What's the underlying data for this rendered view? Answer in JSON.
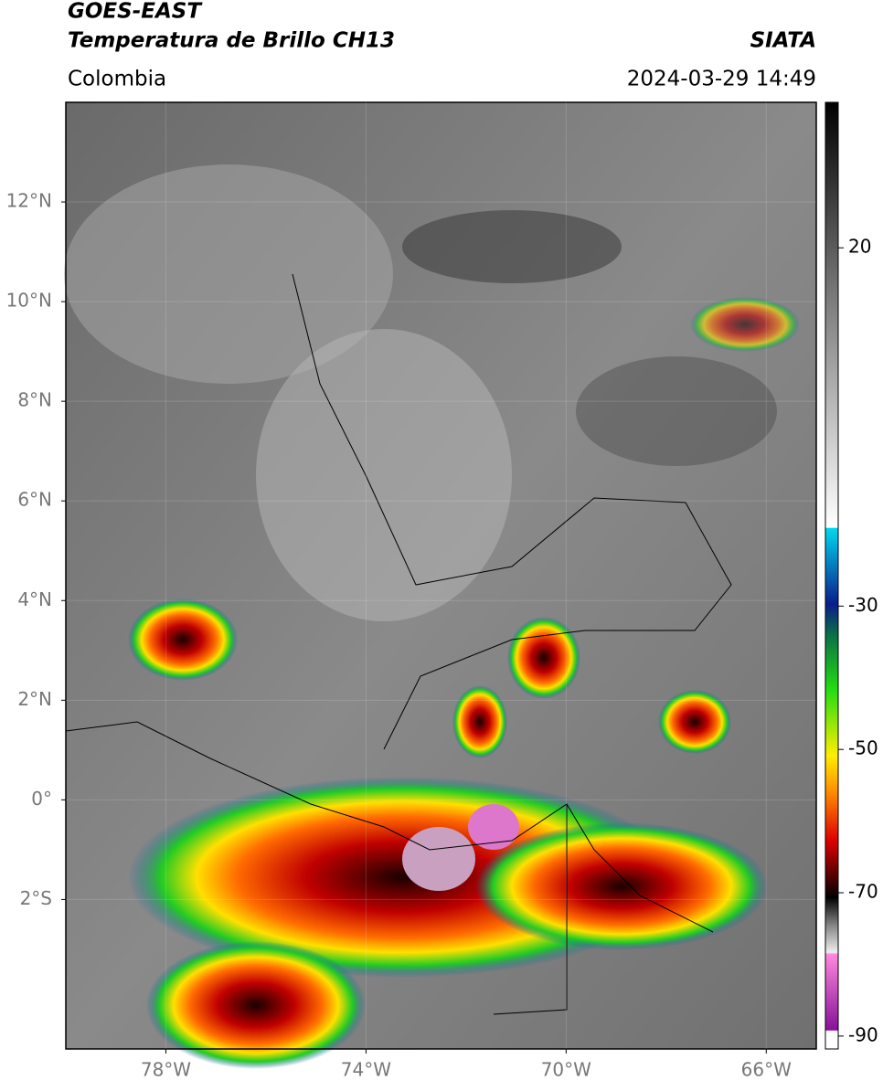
{
  "header": {
    "satellite": "GOES-EAST",
    "product": "Temperatura de Brillo CH13",
    "source": "SIATA",
    "region": "Colombia",
    "datetime": "2024-03-29 14:49"
  },
  "map": {
    "lonlim": [
      -80,
      -65
    ],
    "latlim": [
      -5,
      14
    ],
    "lonticks": [
      {
        "value": -78,
        "label": "78°W"
      },
      {
        "value": -74,
        "label": "74°W"
      },
      {
        "value": -70,
        "label": "70°W"
      },
      {
        "value": -66,
        "label": "66°W"
      }
    ],
    "latticks": [
      {
        "value": 12,
        "label": "12°N"
      },
      {
        "value": 10,
        "label": "10°N"
      },
      {
        "value": 8,
        "label": "8°N"
      },
      {
        "value": 6,
        "label": "6°N"
      },
      {
        "value": 4,
        "label": "4°N"
      },
      {
        "value": 2,
        "label": "2°N"
      },
      {
        "value": 0,
        "label": "0°"
      },
      {
        "value": -2,
        "label": "2°S"
      }
    ]
  },
  "colorbar": {
    "lim": [
      -91.8,
      40.3
    ],
    "ticks": [
      20,
      -30,
      -50,
      -70,
      -90
    ]
  }
}
